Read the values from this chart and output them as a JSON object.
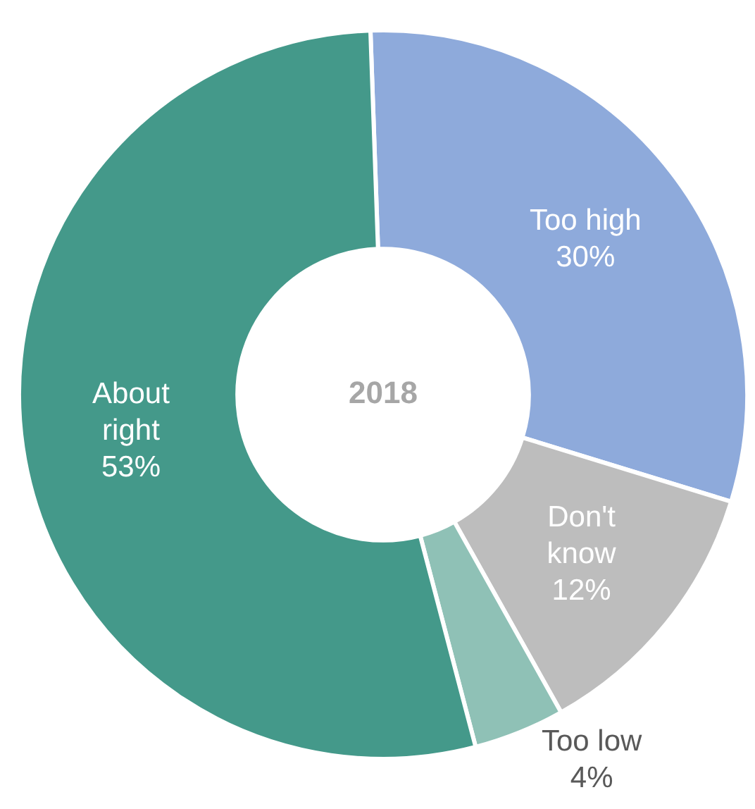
{
  "chart_data": {
    "type": "donut",
    "title": "2018",
    "categories": [
      "Too high",
      "Don't know",
      "Too low",
      "About right"
    ],
    "values": [
      30,
      12,
      4,
      53
    ],
    "value_labels": [
      "30%",
      "12%",
      "4%",
      "53%"
    ],
    "colors": [
      "#8eaadb",
      "#bdbdbd",
      "#8fc1b6",
      "#44998a"
    ],
    "legend": false
  }
}
